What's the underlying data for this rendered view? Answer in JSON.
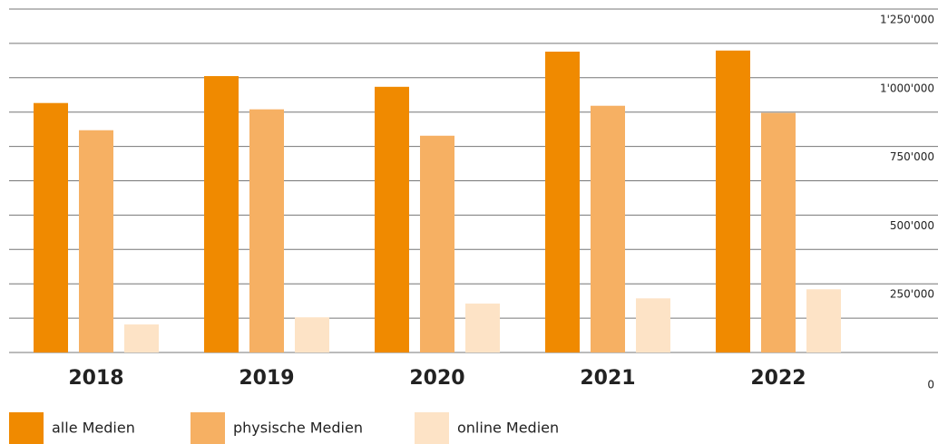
{
  "chart_data": {
    "type": "bar",
    "categories": [
      "2018",
      "2019",
      "2020",
      "2021",
      "2022"
    ],
    "series": [
      {
        "name": "alle Medien",
        "color": "#f08a00",
        "values": [
          908000,
          1006000,
          967000,
          1095000,
          1099000
        ]
      },
      {
        "name": "physische Medien",
        "color": "#f6b063",
        "values": [
          809000,
          885000,
          789000,
          898000,
          872000
        ]
      },
      {
        "name": "online Medien",
        "color": "#fde3c6",
        "values": [
          102000,
          128000,
          178000,
          197000,
          230000
        ]
      }
    ],
    "ylim": [
      0,
      1250000
    ],
    "yticks": [
      0,
      {
        "value": 250000,
        "label": "250'000"
      },
      {
        "value": 500000,
        "label": "500'000"
      },
      {
        "value": 750000,
        "label": "750'000"
      },
      {
        "value": 1000000,
        "label": "1'000'000"
      },
      {
        "value": 1250000,
        "label": "1'250'000"
      }
    ],
    "minor_yticks": [
      125000,
      375000,
      625000,
      875000,
      1125000
    ],
    "grid": true,
    "legend": "bottom-left"
  }
}
